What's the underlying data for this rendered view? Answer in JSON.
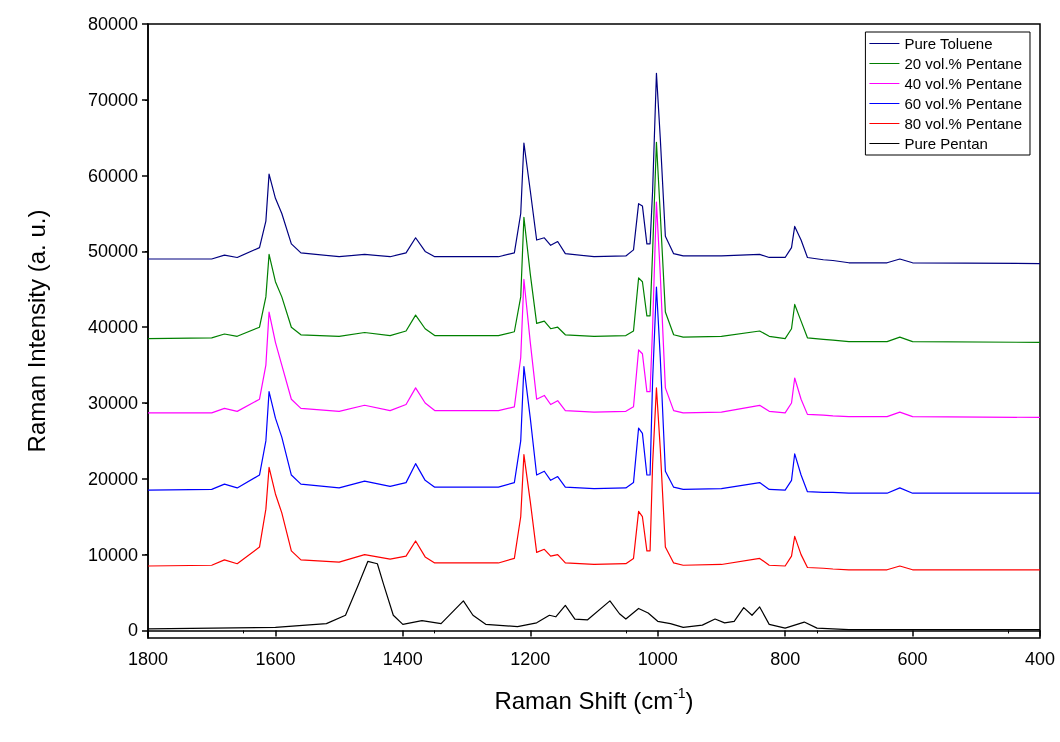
{
  "chart_data": {
    "type": "line",
    "xlabel": "Raman Shift (cm$^{-1}$)",
    "ylabel": "Raman Intensity (a. u.)",
    "xlim": [
      1800,
      400
    ],
    "xticks": [
      1800,
      1600,
      1400,
      1200,
      1000,
      800,
      600,
      400
    ],
    "ylim": [
      -1000,
      80000
    ],
    "yticks": [
      0,
      10000,
      20000,
      30000,
      40000,
      50000,
      60000,
      70000,
      80000
    ],
    "legend": "top right",
    "marker": "none",
    "line_style": "solid",
    "series": [
      {
        "name": "Pure Toluene",
        "color": "#000080",
        "x": [
          1800,
          1700,
          1680,
          1660,
          1625,
          1615,
          1610,
          1600,
          1590,
          1575,
          1560,
          1500,
          1460,
          1420,
          1395,
          1380,
          1365,
          1350,
          1250,
          1225,
          1215,
          1210,
          1200,
          1190,
          1178,
          1168,
          1157,
          1145,
          1100,
          1050,
          1038,
          1030,
          1024,
          1017,
          1012,
          1008,
          1002,
          996,
          988,
          975,
          960,
          900,
          840,
          825,
          800,
          790,
          785,
          775,
          765,
          740,
          725,
          700,
          640,
          620,
          600,
          400
        ],
        "values": [
          49000,
          49000,
          49500,
          49200,
          50500,
          54000,
          60200,
          57000,
          55000,
          51000,
          49800,
          49300,
          49600,
          49300,
          49800,
          51800,
          50000,
          49300,
          49300,
          49800,
          55000,
          64300,
          58000,
          51500,
          51800,
          50800,
          51300,
          49700,
          49300,
          49400,
          50200,
          56300,
          56000,
          51000,
          51000,
          58000,
          73500,
          65000,
          52000,
          49700,
          49400,
          49400,
          49600,
          49200,
          49200,
          50500,
          53300,
          51500,
          49200,
          48900,
          48800,
          48500,
          48500,
          49000,
          48500,
          48400
        ]
      },
      {
        "name": "20 vol.% Pentane",
        "color": "#008000",
        "x": [
          1800,
          1700,
          1680,
          1660,
          1625,
          1615,
          1610,
          1600,
          1590,
          1575,
          1560,
          1500,
          1460,
          1420,
          1395,
          1380,
          1365,
          1350,
          1250,
          1225,
          1215,
          1210,
          1200,
          1190,
          1178,
          1168,
          1157,
          1145,
          1100,
          1050,
          1038,
          1030,
          1024,
          1017,
          1012,
          1008,
          1002,
          996,
          988,
          975,
          960,
          900,
          840,
          825,
          800,
          790,
          785,
          775,
          765,
          740,
          725,
          700,
          640,
          620,
          600,
          400
        ],
        "values": [
          38500,
          38600,
          39100,
          38800,
          40000,
          44000,
          49600,
          46000,
          44000,
          40000,
          39000,
          38800,
          39300,
          38900,
          39500,
          41600,
          39800,
          38900,
          38900,
          39400,
          44000,
          54500,
          47000,
          40500,
          40800,
          39800,
          40000,
          39000,
          38800,
          38900,
          39500,
          46500,
          46000,
          41500,
          41500,
          50000,
          64400,
          55000,
          42000,
          39000,
          38700,
          38800,
          39500,
          38800,
          38500,
          39800,
          43000,
          40800,
          38600,
          38400,
          38300,
          38100,
          38100,
          38700,
          38100,
          38000
        ]
      },
      {
        "name": "40 vol.% Pentane",
        "color": "#ff00ff",
        "x": [
          1800,
          1700,
          1680,
          1660,
          1625,
          1615,
          1610,
          1600,
          1590,
          1575,
          1560,
          1500,
          1460,
          1420,
          1395,
          1380,
          1365,
          1350,
          1250,
          1225,
          1215,
          1210,
          1200,
          1190,
          1178,
          1168,
          1157,
          1145,
          1100,
          1050,
          1038,
          1030,
          1024,
          1017,
          1012,
          1008,
          1002,
          996,
          988,
          975,
          960,
          900,
          840,
          825,
          800,
          790,
          785,
          775,
          765,
          740,
          725,
          700,
          640,
          620,
          600,
          400
        ],
        "values": [
          28700,
          28700,
          29300,
          28900,
          30500,
          35000,
          42000,
          38000,
          35000,
          30500,
          29300,
          28900,
          29700,
          29000,
          29800,
          32000,
          30000,
          29000,
          29000,
          29500,
          36000,
          46300,
          38000,
          30500,
          31000,
          29800,
          30300,
          29000,
          28800,
          28900,
          29500,
          37000,
          36500,
          31500,
          31500,
          40000,
          56500,
          47000,
          32000,
          29000,
          28700,
          28800,
          29700,
          28900,
          28700,
          30000,
          33300,
          30500,
          28500,
          28400,
          28300,
          28200,
          28200,
          28800,
          28200,
          28100
        ]
      },
      {
        "name": "60 vol.% Pentane",
        "color": "#0000ff",
        "x": [
          1800,
          1700,
          1680,
          1660,
          1625,
          1615,
          1610,
          1600,
          1590,
          1575,
          1560,
          1500,
          1460,
          1420,
          1395,
          1380,
          1365,
          1350,
          1250,
          1225,
          1215,
          1210,
          1200,
          1190,
          1178,
          1168,
          1157,
          1145,
          1100,
          1050,
          1038,
          1030,
          1024,
          1017,
          1012,
          1008,
          1002,
          996,
          988,
          975,
          960,
          900,
          840,
          825,
          800,
          790,
          785,
          775,
          765,
          740,
          725,
          700,
          640,
          620,
          600,
          400
        ],
        "values": [
          18500,
          18600,
          19300,
          18800,
          20500,
          25000,
          31500,
          28000,
          25500,
          20500,
          19300,
          18800,
          19700,
          19000,
          19500,
          22000,
          19800,
          18900,
          18900,
          19500,
          25000,
          34800,
          28000,
          20500,
          21000,
          19800,
          20300,
          18900,
          18700,
          18800,
          19500,
          26700,
          26000,
          20500,
          20500,
          33000,
          45300,
          36000,
          21000,
          18900,
          18600,
          18700,
          19500,
          18600,
          18500,
          19800,
          23300,
          20500,
          18300,
          18200,
          18200,
          18100,
          18100,
          18800,
          18100,
          18100
        ]
      },
      {
        "name": "80 vol.% Pentane",
        "color": "#ff0000",
        "x": [
          1800,
          1700,
          1680,
          1660,
          1625,
          1615,
          1610,
          1600,
          1590,
          1575,
          1560,
          1500,
          1460,
          1420,
          1395,
          1380,
          1365,
          1350,
          1250,
          1225,
          1215,
          1210,
          1200,
          1190,
          1178,
          1168,
          1157,
          1145,
          1100,
          1050,
          1038,
          1030,
          1024,
          1017,
          1012,
          1008,
          1002,
          996,
          988,
          975,
          960,
          900,
          840,
          825,
          800,
          790,
          785,
          775,
          765,
          740,
          725,
          700,
          640,
          620,
          600,
          400
        ],
        "values": [
          8500,
          8600,
          9300,
          8800,
          11000,
          16000,
          21500,
          18000,
          15500,
          10500,
          9300,
          9000,
          10000,
          9400,
          9800,
          11800,
          9700,
          8900,
          8900,
          9500,
          15000,
          23200,
          17000,
          10300,
          10700,
          9800,
          10000,
          8900,
          8700,
          8800,
          9500,
          15700,
          15000,
          10500,
          10500,
          22000,
          32000,
          24000,
          11000,
          8900,
          8600,
          8700,
          9500,
          8600,
          8500,
          9800,
          12400,
          10000,
          8300,
          8200,
          8100,
          8000,
          8000,
          8500,
          8000,
          8000
        ]
      },
      {
        "name": "Pure Pentan",
        "color": "#000000",
        "x": [
          1800,
          1600,
          1520,
          1490,
          1470,
          1455,
          1440,
          1430,
          1415,
          1400,
          1370,
          1340,
          1305,
          1290,
          1270,
          1220,
          1190,
          1170,
          1160,
          1145,
          1130,
          1110,
          1075,
          1060,
          1050,
          1030,
          1015,
          1000,
          980,
          960,
          930,
          910,
          895,
          880,
          865,
          852,
          840,
          825,
          800,
          770,
          750,
          700,
          400
        ],
        "values": [
          200,
          400,
          900,
          2000,
          6000,
          9100,
          8800,
          6000,
          2000,
          800,
          1300,
          900,
          3900,
          2000,
          800,
          500,
          1000,
          2000,
          1800,
          3300,
          1500,
          1400,
          3900,
          2200,
          1500,
          2900,
          2300,
          1200,
          900,
          400,
          700,
          1500,
          1000,
          1200,
          3000,
          2000,
          3100,
          800,
          300,
          1100,
          300,
          100,
          100
        ]
      }
    ]
  }
}
